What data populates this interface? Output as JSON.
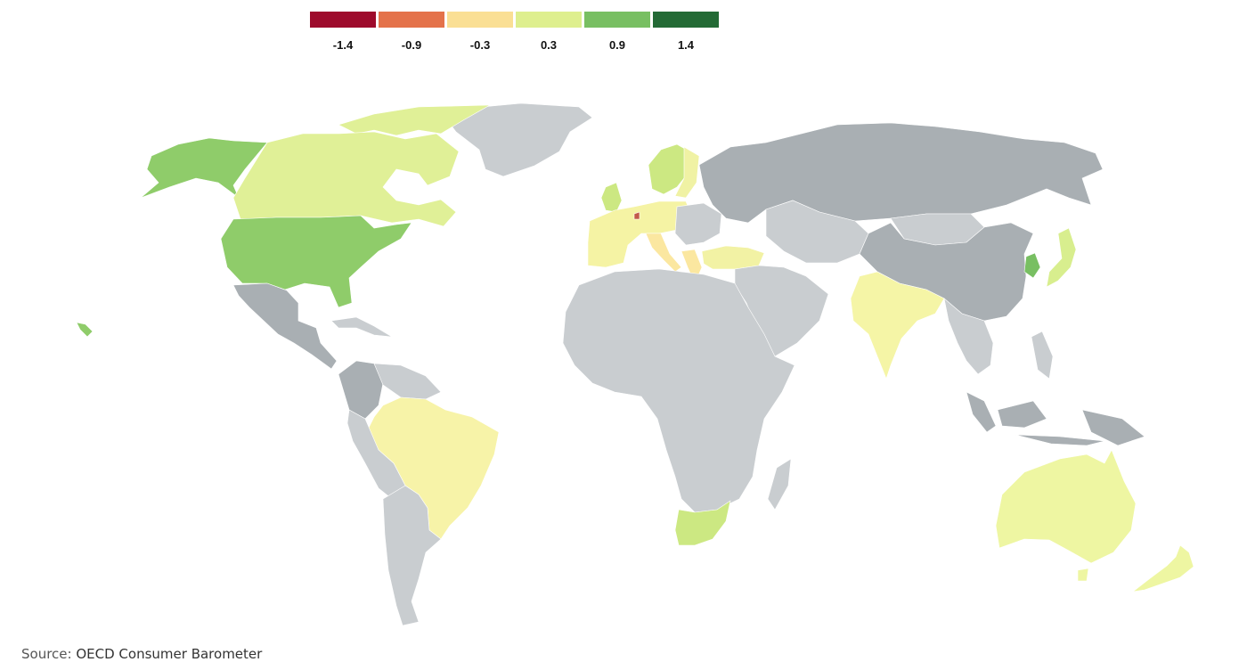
{
  "legend": {
    "bins": [
      {
        "label": "-1.4",
        "color": "#9e0b2c"
      },
      {
        "label": "-0.9",
        "color": "#e4724a"
      },
      {
        "label": "-0.3",
        "color": "#fadf94"
      },
      {
        "label": "0.3",
        "color": "#deef8e"
      },
      {
        "label": "0.9",
        "color": "#78bf62"
      },
      {
        "label": "1.4",
        "color": "#236a35"
      }
    ]
  },
  "colors": {
    "no_data_light": "#c9cdd0",
    "no_data_dark": "#a9afb3",
    "usa": "#8fcc6a",
    "canada": "#e0f097",
    "alaska": "#8fcc6a",
    "brazil": "#f7f3a8",
    "india": "#f5f5a6",
    "australia": "#eef6a2",
    "new_zealand": "#eef6a2",
    "south_africa": "#cce882",
    "japan": "#d8ee8e",
    "korea": "#78bf62",
    "europe_north": "#cce882",
    "europe_west": "#f5f3a4",
    "europe_south": "#fbe7a0",
    "turkey": "#f2f2a4",
    "baltics": "#f0f2a4",
    "austria": "#c25a4a"
  },
  "source": {
    "prefix": "Source:",
    "value": "OECD Consumer Barometer"
  }
}
